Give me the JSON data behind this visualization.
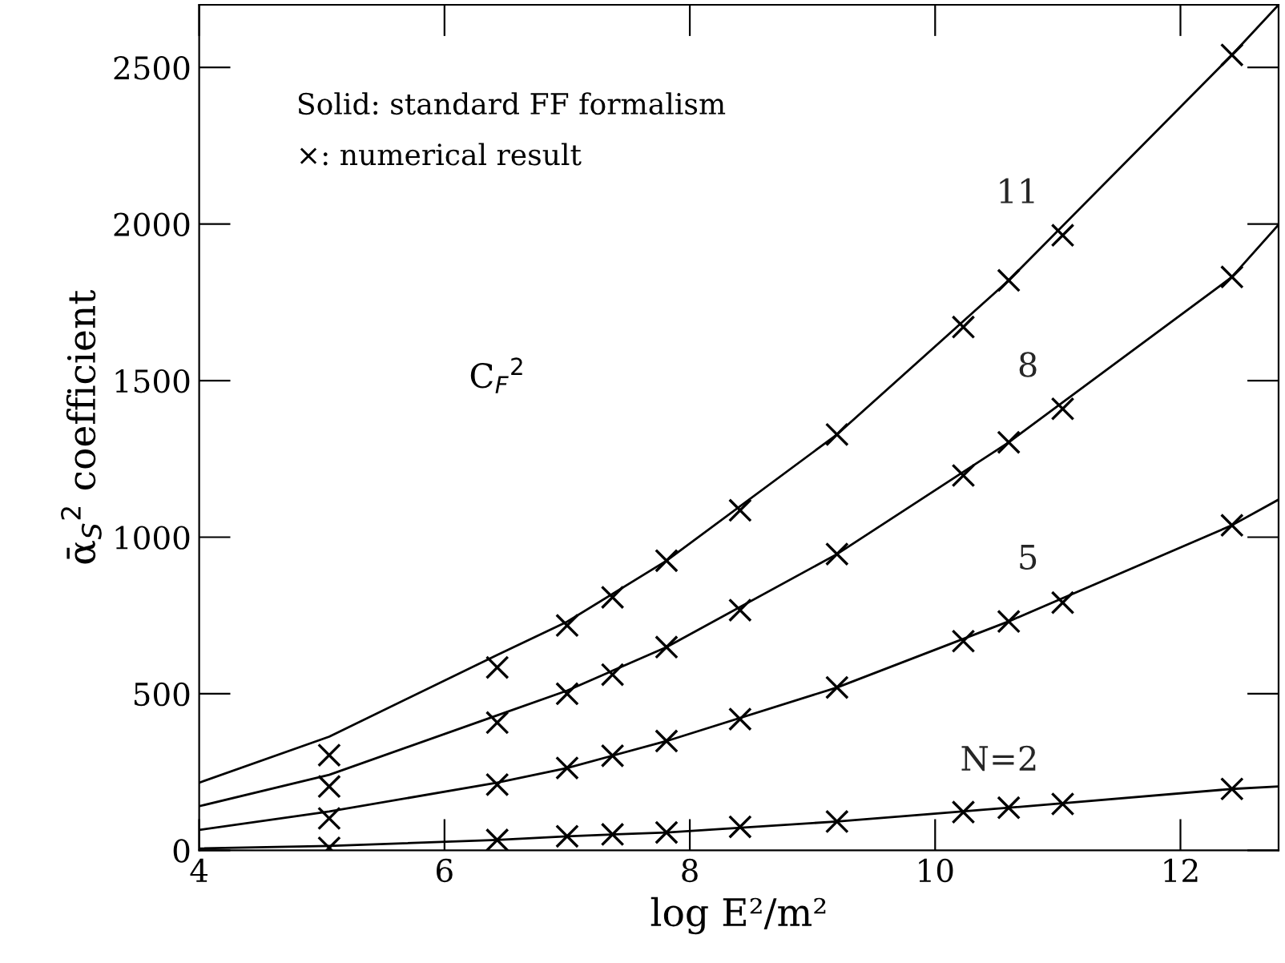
{
  "chart_data": {
    "type": "line",
    "xlabel": "log E²/m²",
    "ylabel": "ᾱ$_{S}$$^{2}$ coefficient",
    "xlim": [
      4,
      12.8
    ],
    "ylim": [
      0,
      2700
    ],
    "xticks": [
      4,
      6,
      8,
      10,
      12
    ],
    "yticks": [
      0,
      500,
      1000,
      1500,
      2000,
      2500
    ],
    "grid": false,
    "legend": false,
    "annotations": [
      "Solid: standard FF formalism",
      "×: numerical result",
      "C$_{F}$$^{2}$"
    ],
    "series": [
      {
        "name": "11",
        "color": "#000000",
        "line_style": "solid",
        "x": [
          4,
          5.06,
          6.43,
          7.0,
          7.81,
          9.2,
          10.6,
          12.42,
          12.8
        ],
        "values": [
          216,
          363,
          624,
          730,
          925,
          1328,
          1820,
          2540,
          2700
        ]
      },
      {
        "name": "8",
        "color": "#000000",
        "line_style": "solid",
        "x": [
          4,
          5.06,
          6.43,
          7.0,
          7.81,
          9.2,
          10.6,
          12.42,
          12.8
        ],
        "values": [
          141,
          241,
          431,
          510,
          649,
          946,
          1303,
          1831,
          1998
        ]
      },
      {
        "name": "5",
        "color": "#000000",
        "line_style": "solid",
        "x": [
          4,
          5.06,
          6.43,
          7.0,
          7.81,
          9.2,
          10.6,
          12.42,
          12.8
        ],
        "values": [
          65,
          124,
          216,
          263,
          349,
          520,
          731,
          1038,
          1120
        ]
      },
      {
        "name": "N=2",
        "color": "#000000",
        "line_style": "solid",
        "x": [
          4,
          5.06,
          6.43,
          7.0,
          7.81,
          9.2,
          10.6,
          12.42,
          12.8
        ],
        "values": [
          6,
          14,
          33,
          45,
          57,
          92,
          136,
          196,
          204
        ]
      },
      {
        "type": "scatter",
        "color": "#000000",
        "marker": "cross",
        "x": [
          5.06,
          6.43,
          7.0,
          7.37,
          7.81,
          8.41,
          9.2,
          10.23,
          10.6,
          11.04,
          12.42
        ],
        "values": [
          304,
          584,
          718,
          808,
          925,
          1086,
          1328,
          1671,
          1820,
          1964,
          2540
        ]
      },
      {
        "type": "scatter",
        "color": "#000000",
        "marker": "cross",
        "x": [
          5.06,
          6.43,
          7.0,
          7.37,
          7.81,
          8.41,
          9.2,
          10.23,
          10.6,
          11.04,
          12.42
        ],
        "values": [
          204,
          408,
          500,
          561,
          649,
          767,
          946,
          1197,
          1303,
          1410,
          1831
        ]
      },
      {
        "type": "scatter",
        "color": "#000000",
        "marker": "cross",
        "x": [
          5.06,
          6.43,
          7.0,
          7.37,
          7.81,
          8.41,
          9.2,
          10.23,
          10.6,
          11.04,
          12.42
        ],
        "values": [
          102,
          210,
          263,
          302,
          349,
          419,
          520,
          668,
          731,
          791,
          1038
        ]
      },
      {
        "type": "scatter",
        "color": "#000000",
        "marker": "cross",
        "x": [
          5.06,
          6.43,
          7.0,
          7.37,
          7.81,
          8.41,
          9.2,
          10.23,
          10.6,
          11.04,
          12.42
        ],
        "values": [
          8,
          33,
          45,
          51,
          57,
          75,
          92,
          122,
          136,
          148,
          196
        ]
      }
    ]
  }
}
